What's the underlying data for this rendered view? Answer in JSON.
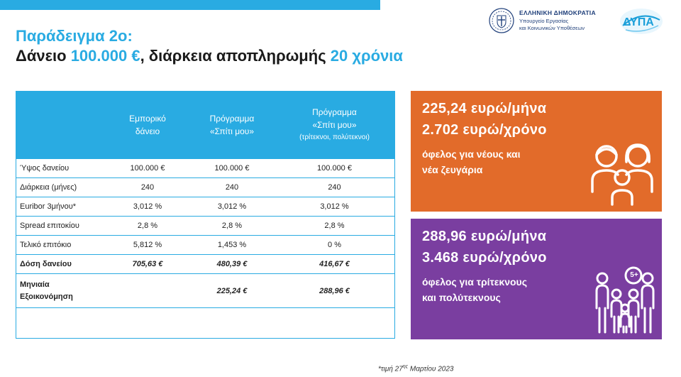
{
  "header": {
    "title_line1": "Παράδειγμα 2ο:",
    "title_line2_a": "Δάνειο ",
    "title_line2_amount": "100.000 €",
    "title_line2_b": ", διάρκεια αποπληρωμής ",
    "title_line2_years": "20 χρόνια"
  },
  "logos": {
    "gov_line1": "ΕΛΛΗΝΙΚΗ ΔΗΜΟΚΡΑΤΙΑ",
    "gov_line2": "Υπουργείο Εργασίας",
    "gov_line3": "και Κοινωνικών Υποθέσεων",
    "dypa": "ΔΥΠΑ",
    "gov_icon": "greek-emblem-icon",
    "dypa_icon": "dypa-logo-icon"
  },
  "table": {
    "columns": [
      {
        "l1": "",
        "l2": "",
        "l3": ""
      },
      {
        "l1": "Εμπορικό",
        "l2": "δάνειο",
        "l3": ""
      },
      {
        "l1": "Πρόγραμμα",
        "l2": "«Σπίτι μου»",
        "l3": ""
      },
      {
        "l1": "Πρόγραμμα",
        "l2": "«Σπίτι μου»",
        "l3": "(τρίτεκνοι, πολύτεκνοι)"
      }
    ],
    "rows": [
      {
        "label": "Ύψος δανείου",
        "v1": "100.000 €",
        "v2": "100.000 €",
        "v3": "100.000 €"
      },
      {
        "label": "Διάρκεια (μήνες)",
        "v1": "240",
        "v2": "240",
        "v3": "240"
      },
      {
        "label": "Euribor 3μήνου*",
        "v1": "3,012 %",
        "v2": "3,012 %",
        "v3": "3,012 %"
      },
      {
        "label": "Spread επιτοκίου",
        "v1": "2,8 %",
        "v2": "2,8 %",
        "v3": "2,8 %"
      },
      {
        "label": "Τελικό επιτόκιο",
        "v1": "5,812 %",
        "v2": "1,453 %",
        "v3": "0 %"
      },
      {
        "label": "Δόση δανείου",
        "v1": "705,63 €",
        "v2": "480,39 €",
        "v3": "416,67 €"
      },
      {
        "label1": "Μηνιαία",
        "label2": "Εξοικονόμηση",
        "v1": "",
        "v2": "225,24 €",
        "v3": "288,96 €"
      }
    ]
  },
  "boxes": {
    "orange": {
      "color": "#e26b2a",
      "line1": "225,24 ευρώ/μήνα",
      "line2": "2.702 ευρώ/χρόνο",
      "sub1": "όφελος για νέους και",
      "sub2": "νέα ζευγάρια",
      "icon": "family-icon"
    },
    "purple": {
      "color": "#7a3ea0",
      "line1": "288,96 ευρώ/μήνα",
      "line2": "3.468 ευρώ/χρόνο",
      "sub1": "όφελος για τρίτεκνους",
      "sub2": "και πολύτεκνους",
      "badge": "5+",
      "icon": "large-family-icon"
    }
  },
  "footnote": {
    "prefix": "*τιμή 27",
    "sup": "ης",
    "suffix": " Μαρτίου 2023"
  },
  "accent": "#29abe2"
}
